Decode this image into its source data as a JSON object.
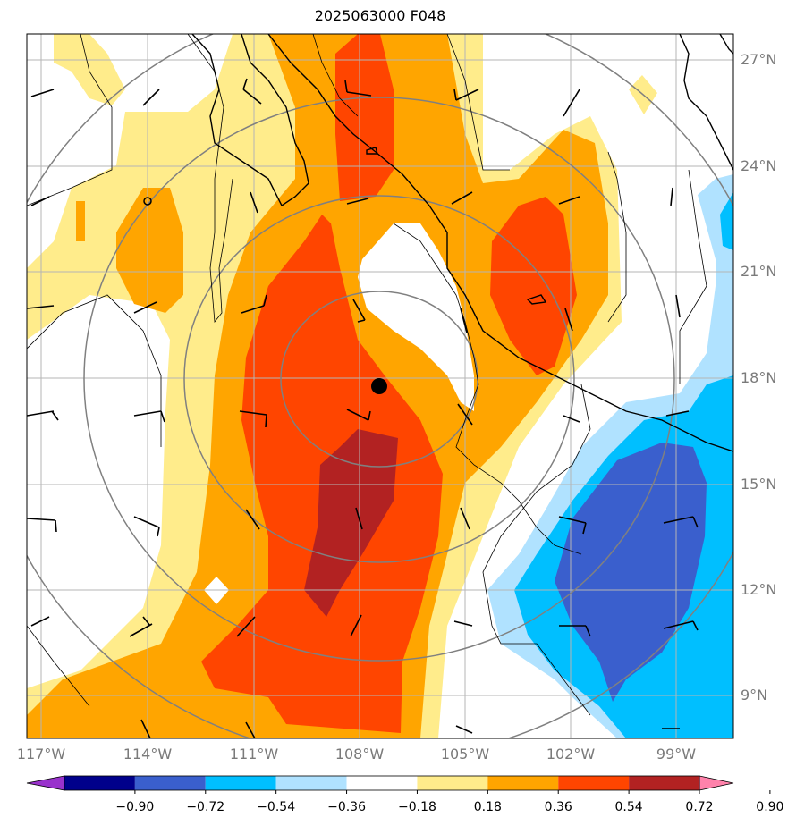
{
  "title": "2025063000 F048",
  "lat_labels": [
    "27°N",
    "24°N",
    "21°N",
    "18°N",
    "15°N",
    "12°N",
    "9°N"
  ],
  "lon_labels": [
    "117°W",
    "114°W",
    "111°W",
    "108°W",
    "105°W",
    "102°W",
    "99°W"
  ],
  "colorbar": {
    "ticks": [
      "−0.90",
      "−0.72",
      "−0.54",
      "−0.36",
      "−0.18",
      "0.18",
      "0.36",
      "0.54",
      "0.72",
      "0.90"
    ],
    "colors": [
      "#9932cc",
      "#00008b",
      "#3a5fcd",
      "#00bfff",
      "#b0e2ff",
      "#ffffff",
      "#ffec8b",
      "#ffa500",
      "#ff4500",
      "#b22222",
      "#ff82ab"
    ]
  },
  "storm_center": {
    "lat": 17.7,
    "lon": -107.6
  }
}
